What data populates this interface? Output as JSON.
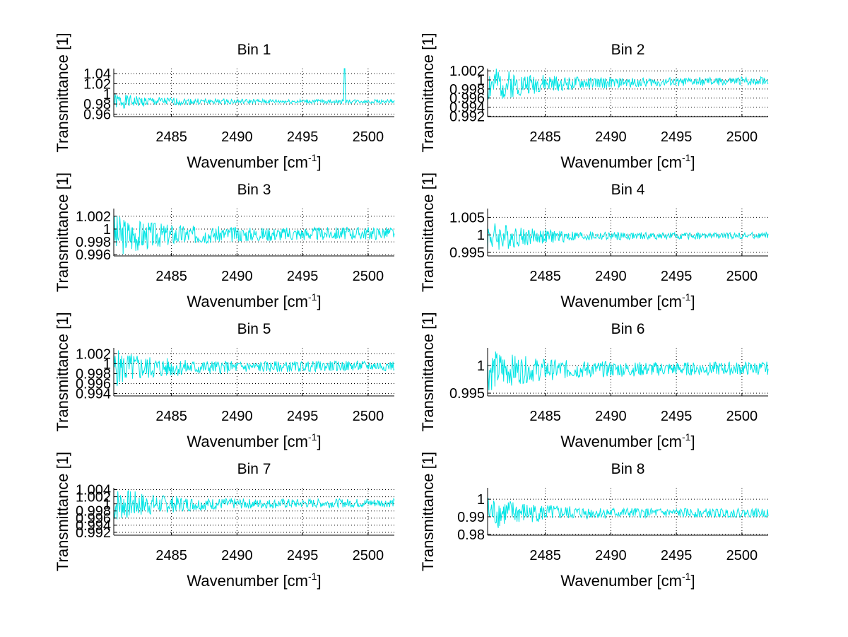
{
  "figure": {
    "background": "#ffffff",
    "line_color": "#00e5e5",
    "axis_color": "#000000",
    "grid_style": "dotted"
  },
  "chart_data": [
    {
      "type": "line",
      "title": "Bin 1",
      "xlabel": "Wavenumber [cm",
      "xlabel_sup": "-1",
      "xlabel_suffix": "]",
      "ylabel": "Transmittance [1]",
      "xlim": [
        2480.6,
        2502.0
      ],
      "ylim": [
        0.955,
        1.05
      ],
      "xticks": [
        2485,
        2490,
        2495,
        2500
      ],
      "xtick_labels": [
        "2485",
        "2490",
        "2495",
        "2500"
      ],
      "yticks": [
        0.96,
        0.98,
        1,
        1.02,
        1.04
      ],
      "ytick_labels": [
        "0.96",
        "0.98",
        "1",
        "1.02",
        "1.04"
      ],
      "grid": true,
      "series": [
        {
          "name": "Bin 1",
          "mean": 0.985,
          "noise_start": 0.012,
          "noise_end": 0.004,
          "spikes": [
            [
              2498.2,
              1.05
            ]
          ],
          "seed": 1
        }
      ]
    },
    {
      "type": "line",
      "title": "Bin 2",
      "xlabel": "Wavenumber [cm",
      "xlabel_sup": "-1",
      "xlabel_suffix": "]",
      "ylabel": "Transmittance [1]",
      "xlim": [
        2480.6,
        2502.0
      ],
      "ylim": [
        0.9919,
        1.0025
      ],
      "xticks": [
        2485,
        2490,
        2495,
        2500
      ],
      "xtick_labels": [
        "2485",
        "2490",
        "2495",
        "2500"
      ],
      "yticks": [
        0.992,
        0.994,
        0.996,
        0.998,
        1,
        1.002
      ],
      "ytick_labels": [
        "0.992",
        "0.994",
        "0.996",
        "0.998",
        "1",
        "1.002"
      ],
      "grid": true,
      "series": [
        {
          "name": "Bin 2",
          "mean": 0.999,
          "trend": 0.0008,
          "noise_start": 0.0035,
          "noise_end": 0.0009,
          "spikes": [],
          "seed": 2
        }
      ]
    },
    {
      "type": "line",
      "title": "Bin 3",
      "xlabel": "Wavenumber [cm",
      "xlabel_sup": "-1",
      "xlabel_suffix": "]",
      "ylabel": "Transmittance [1]",
      "xlim": [
        2480.6,
        2502.0
      ],
      "ylim": [
        0.9958,
        1.0032
      ],
      "xticks": [
        2485,
        2490,
        2495,
        2500
      ],
      "xtick_labels": [
        "2485",
        "2490",
        "2495",
        "2500"
      ],
      "yticks": [
        0.996,
        0.998,
        1,
        1.002
      ],
      "ytick_labels": [
        "0.996",
        "0.998",
        "1",
        "1.002"
      ],
      "grid": true,
      "series": [
        {
          "name": "Bin 3",
          "mean": 0.999,
          "trend": 0.0004,
          "noise_start": 0.0025,
          "noise_end": 0.001,
          "spikes": [],
          "seed": 3
        }
      ]
    },
    {
      "type": "line",
      "title": "Bin 4",
      "xlabel": "Wavenumber [cm",
      "xlabel_sup": "-1",
      "xlabel_suffix": "]",
      "ylabel": "Transmittance [1]",
      "xlim": [
        2480.6,
        2502.0
      ],
      "ylim": [
        0.994,
        1.0075
      ],
      "xticks": [
        2485,
        2490,
        2495,
        2500
      ],
      "xtick_labels": [
        "2485",
        "2490",
        "2495",
        "2500"
      ],
      "yticks": [
        0.995,
        1,
        1.005
      ],
      "ytick_labels": [
        "0.995",
        "1",
        "1.005"
      ],
      "grid": true,
      "series": [
        {
          "name": "Bin 4",
          "mean": 0.9995,
          "trend": 0.0003,
          "noise_start": 0.004,
          "noise_end": 0.0009,
          "spikes": [],
          "seed": 4
        }
      ]
    },
    {
      "type": "line",
      "title": "Bin 5",
      "xlabel": "Wavenumber [cm",
      "xlabel_sup": "-1",
      "xlabel_suffix": "]",
      "ylabel": "Transmittance [1]",
      "xlim": [
        2480.6,
        2502.0
      ],
      "ylim": [
        0.9935,
        1.0032
      ],
      "xticks": [
        2485,
        2490,
        2495,
        2500
      ],
      "xtick_labels": [
        "2485",
        "2490",
        "2495",
        "2500"
      ],
      "yticks": [
        0.994,
        0.996,
        0.998,
        1,
        1.002
      ],
      "ytick_labels": [
        "0.994",
        "0.996",
        "0.998",
        "1",
        "1.002"
      ],
      "grid": true,
      "series": [
        {
          "name": "Bin 5",
          "mean": 0.9991,
          "trend": 0.0005,
          "noise_start": 0.003,
          "noise_end": 0.001,
          "spikes": [],
          "seed": 5
        }
      ]
    },
    {
      "type": "line",
      "title": "Bin 6",
      "xlabel": "Wavenumber [cm",
      "xlabel_sup": "-1",
      "xlabel_suffix": "]",
      "ylabel": "Transmittance [1]",
      "xlim": [
        2480.6,
        2502.0
      ],
      "ylim": [
        0.9945,
        1.0032
      ],
      "xticks": [
        2485,
        2490,
        2495,
        2500
      ],
      "xtick_labels": [
        "2485",
        "2490",
        "2495",
        "2500"
      ],
      "yticks": [
        0.995,
        1
      ],
      "ytick_labels": [
        "0.995",
        "1"
      ],
      "grid": true,
      "series": [
        {
          "name": "Bin 6",
          "mean": 0.9992,
          "trend": 0.0003,
          "noise_start": 0.0028,
          "noise_end": 0.0012,
          "spikes": [],
          "seed": 6
        }
      ]
    },
    {
      "type": "line",
      "title": "Bin 7",
      "xlabel": "Wavenumber [cm",
      "xlabel_sup": "-1",
      "xlabel_suffix": "]",
      "ylabel": "Transmittance [1]",
      "xlim": [
        2480.6,
        2502.0
      ],
      "ylim": [
        0.9912,
        1.0045
      ],
      "xticks": [
        2485,
        2490,
        2495,
        2500
      ],
      "xtick_labels": [
        "2485",
        "2490",
        "2495",
        "2500"
      ],
      "yticks": [
        0.992,
        0.994,
        0.996,
        0.998,
        1,
        1.002,
        1.004
      ],
      "ytick_labels": [
        "0.992",
        "0.994",
        "0.996",
        "0.998",
        "1",
        "1.002",
        "1.004"
      ],
      "grid": true,
      "series": [
        {
          "name": "Bin 7",
          "mean": 0.9998,
          "trend": 0.0005,
          "noise_start": 0.004,
          "noise_end": 0.0012,
          "spikes": [],
          "seed": 7
        }
      ]
    },
    {
      "type": "line",
      "title": "Bin 8",
      "xlabel": "Wavenumber [cm",
      "xlabel_sup": "-1",
      "xlabel_suffix": "]",
      "ylabel": "Transmittance [1]",
      "xlim": [
        2480.6,
        2502.0
      ],
      "ylim": [
        0.9795,
        1.0065
      ],
      "xticks": [
        2485,
        2490,
        2495,
        2500
      ],
      "xtick_labels": [
        "2485",
        "2490",
        "2495",
        "2500"
      ],
      "yticks": [
        0.98,
        0.99,
        1
      ],
      "ytick_labels": [
        "0.98",
        "0.99",
        "1"
      ],
      "grid": true,
      "series": [
        {
          "name": "Bin 8",
          "mean": 0.9922,
          "trend": 0.0,
          "noise_start": 0.008,
          "noise_end": 0.0025,
          "spikes": [],
          "seed": 8
        }
      ]
    }
  ]
}
